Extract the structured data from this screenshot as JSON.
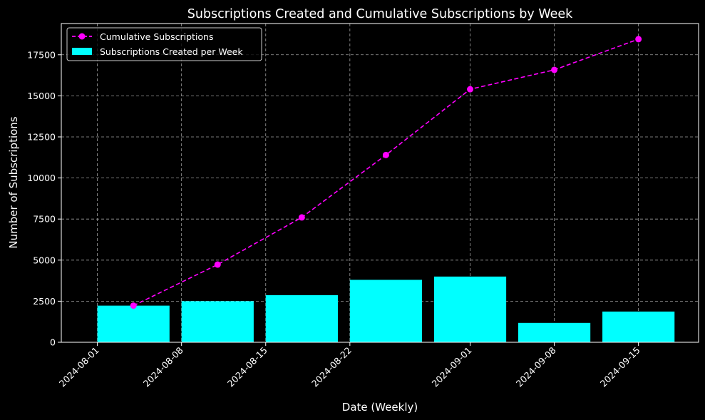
{
  "chart_data": {
    "type": "bar",
    "title": "Subscriptions Created and Cumulative Subscriptions by Week",
    "xlabel": "Date (Weekly)",
    "ylabel": "Number of Subscriptions",
    "x_tick_labels": [
      {
        "label": "2024-08-01",
        "date": "2024-08-01"
      },
      {
        "label": "2024-08-08",
        "date": "2024-08-08"
      },
      {
        "label": "2024-08-15",
        "date": "2024-08-15"
      },
      {
        "label": "2024-08-22",
        "date": "2024-08-22"
      },
      {
        "label": "2024-09-01",
        "date": "2024-09-01"
      },
      {
        "label": "2024-09-08",
        "date": "2024-09-08"
      },
      {
        "label": "2024-09-15",
        "date": "2024-09-15"
      }
    ],
    "y_ticks": [
      0,
      2500,
      5000,
      7500,
      10000,
      12500,
      15000,
      17500
    ],
    "ylim": [
      0,
      19400
    ],
    "xlim": [
      "2024-07-29",
      "2024-09-20"
    ],
    "grid": true,
    "legend_position": "top-left",
    "colors": {
      "background": "#000000",
      "bar": "#00ffff",
      "line": "#ff00ff",
      "grid": "#a0a0a0",
      "text": "#ffffff"
    },
    "series": [
      {
        "name": "Cumulative Subscriptions",
        "type": "line",
        "style": "dashed-with-circle-markers",
        "color": "#ff00ff",
        "x": [
          "2024-08-04",
          "2024-08-11",
          "2024-08-18",
          "2024-08-25",
          "2024-09-01",
          "2024-09-08",
          "2024-09-15"
        ],
        "values": [
          2230,
          4730,
          7600,
          11400,
          15400,
          16580,
          18450
        ]
      },
      {
        "name": "Subscriptions Created per Week",
        "type": "bar",
        "color": "#00ffff",
        "x": [
          "2024-08-04",
          "2024-08-11",
          "2024-08-18",
          "2024-08-25",
          "2024-09-01",
          "2024-09-08",
          "2024-09-15"
        ],
        "values": [
          2230,
          2500,
          2870,
          3800,
          4000,
          1180,
          1870
        ]
      }
    ]
  }
}
